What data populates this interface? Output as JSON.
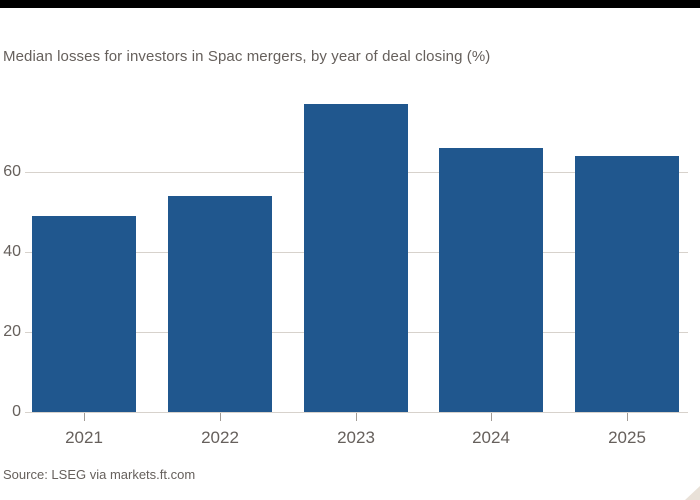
{
  "chart_data": {
    "type": "bar",
    "title": "Median losses for investors in Spac mergers, by year of deal closing (%)",
    "categories": [
      "2021",
      "2022",
      "2023",
      "2024",
      "2025"
    ],
    "values": [
      49,
      54,
      77,
      66,
      64
    ],
    "xlabel": "",
    "ylabel": "",
    "yticks": [
      0,
      20,
      40,
      60
    ],
    "ylim": [
      0,
      80
    ],
    "grid": true,
    "legend": false,
    "source": "Source: LSEG via markets.ft.com"
  },
  "colors": {
    "bar": "#20578E",
    "text": "#66605C",
    "gridline": "#D7D2CC",
    "tick": "#A19B95",
    "top_bar": "#000000",
    "background": "#FFFFFF",
    "corner_triangle": "#E9E1D8"
  }
}
